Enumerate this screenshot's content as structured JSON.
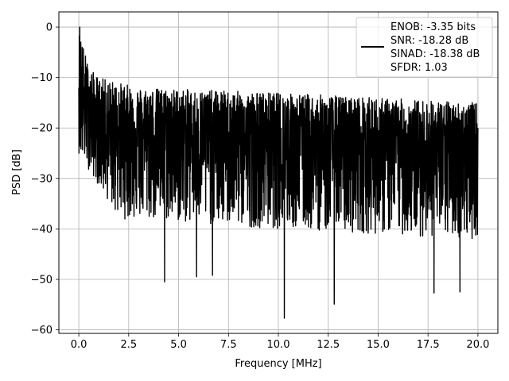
{
  "chart_data": {
    "type": "line",
    "title": "",
    "xlabel": "Frequency [MHz]",
    "ylabel": "PSD [dB]",
    "xlim": [
      -1.0,
      21.0
    ],
    "ylim": [
      -60.7,
      3.0
    ],
    "xticks": [
      0.0,
      2.5,
      5.0,
      7.5,
      10.0,
      12.5,
      15.0,
      17.5,
      20.0
    ],
    "xtick_labels": [
      "0.0",
      "2.5",
      "5.0",
      "7.5",
      "10.0",
      "12.5",
      "15.0",
      "17.5",
      "20.0"
    ],
    "yticks": [
      0,
      -10,
      -20,
      -30,
      -40,
      -50,
      -60
    ],
    "ytick_labels": [
      "0",
      "−10",
      "−20",
      "−30",
      "−40",
      "−50",
      "−60"
    ],
    "grid": true,
    "legend_position": "top-right",
    "legend": {
      "lines": [
        "ENOB: -3.35 bits",
        "SNR: -18.28 dB",
        "SINAD: -18.38 dB",
        "SFDR: 1.03"
      ]
    },
    "series": [
      {
        "color": "#000000",
        "description_points": {
          "x": [
            0.0,
            0.05,
            0.1,
            0.2,
            0.35,
            0.5,
            1.0,
            2.0,
            4.3,
            5.9,
            6.7,
            10.3,
            12.8,
            17.8,
            19.1,
            20.0
          ],
          "y": [
            -12,
            0,
            -3,
            -8,
            -10,
            -12,
            -15,
            -17,
            -50.5,
            -49.5,
            -49.2,
            -57.7,
            -54.9,
            -52.7,
            -52.5,
            -20
          ]
        },
        "peak_envelope": [
          [
            0.0,
            0
          ],
          [
            0.5,
            -8
          ],
          [
            1.0,
            -10
          ],
          [
            3.0,
            -12
          ],
          [
            10.0,
            -13
          ],
          [
            15.0,
            -14
          ],
          [
            20.0,
            -15
          ]
        ],
        "mean_level": [
          [
            0.0,
            -15
          ],
          [
            1.0,
            -20
          ],
          [
            10.0,
            -23
          ],
          [
            20.0,
            -25
          ]
        ],
        "trough_envelope": [
          [
            0.0,
            -25
          ],
          [
            2.0,
            -38
          ],
          [
            10.0,
            -40
          ],
          [
            20.0,
            -42
          ]
        ]
      }
    ]
  }
}
